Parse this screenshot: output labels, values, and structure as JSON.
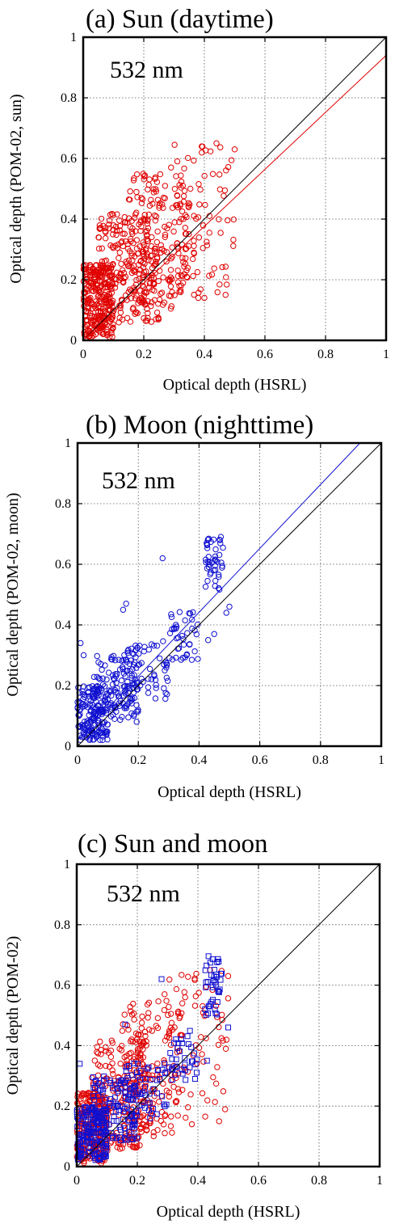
{
  "chart_data": [
    {
      "type": "scatter",
      "panel_title": "(a) Sun (daytime)",
      "annotation": "532 nm",
      "xlabel": "Optical depth (HSRL)",
      "ylabel": "Optical depth (POM-02, sun)",
      "xlim": [
        0,
        1
      ],
      "ylim": [
        0,
        1
      ],
      "xticks": [
        "0",
        "0.2",
        "0.4",
        "0.6",
        "0.8",
        "1"
      ],
      "yticks": [
        "0",
        "0.2",
        "0.4",
        "0.6",
        "0.8",
        "1"
      ],
      "grid": true,
      "series": [
        {
          "marker": "circle",
          "color": "#e00000",
          "clusters": [
            {
              "x_range": [
                0.0,
                0.1
              ],
              "y_range": [
                0.01,
                0.25
              ],
              "count": 260
            },
            {
              "x_range": [
                0.05,
                0.25
              ],
              "y_range": [
                0.05,
                0.42
              ],
              "count": 240
            },
            {
              "x_range": [
                0.15,
                0.35
              ],
              "y_range": [
                0.1,
                0.55
              ],
              "count": 170
            },
            {
              "x_range": [
                0.3,
                0.5
              ],
              "y_range": [
                0.15,
                0.65
              ],
              "count": 80
            }
          ],
          "points": [
            [
              0.44,
              0.65
            ],
            [
              0.5,
              0.63
            ],
            [
              0.47,
              0.15
            ],
            [
              0.38,
              0.14
            ],
            [
              0.4,
              0.14
            ],
            [
              0.29,
              0.57
            ]
          ]
        }
      ],
      "lines": [
        {
          "name": "1:1",
          "color": "#000000",
          "x": [
            0,
            1
          ],
          "y": [
            0,
            1
          ]
        },
        {
          "name": "fit",
          "color": "#e00000",
          "x": [
            0,
            1
          ],
          "y": [
            0.0,
            0.94
          ]
        }
      ]
    },
    {
      "type": "scatter",
      "panel_title": "(b) Moon (nighttime)",
      "annotation": "532 nm",
      "xlabel": "Optical depth (HSRL)",
      "ylabel": "Optical depth (POM-02, moon)",
      "xlim": [
        0,
        1
      ],
      "ylim": [
        0,
        1
      ],
      "xticks": [
        "0",
        "0.2",
        "0.4",
        "0.6",
        "0.8",
        "1"
      ],
      "yticks": [
        "0",
        "0.2",
        "0.4",
        "0.6",
        "0.8",
        "1"
      ],
      "grid": true,
      "series": [
        {
          "marker": "circle",
          "color": "#1010d0",
          "clusters": [
            {
              "x_range": [
                0.0,
                0.1
              ],
              "y_range": [
                0.02,
                0.2
              ],
              "count": 160
            },
            {
              "x_range": [
                0.05,
                0.2
              ],
              "y_range": [
                0.08,
                0.3
              ],
              "count": 120
            },
            {
              "x_range": [
                0.15,
                0.3
              ],
              "y_range": [
                0.15,
                0.35
              ],
              "count": 70
            },
            {
              "x_range": [
                0.3,
                0.4
              ],
              "y_range": [
                0.28,
                0.45
              ],
              "count": 40
            },
            {
              "x_range": [
                0.42,
                0.48
              ],
              "y_range": [
                0.5,
                0.7
              ],
              "count": 45
            }
          ],
          "points": [
            [
              0.28,
              0.62
            ],
            [
              0.16,
              0.47
            ],
            [
              0.15,
              0.45
            ],
            [
              0.01,
              0.34
            ],
            [
              0.02,
              0.3
            ],
            [
              0.5,
              0.46
            ],
            [
              0.49,
              0.44
            ],
            [
              0.43,
              0.35
            ],
            [
              0.45,
              0.37
            ]
          ]
        }
      ],
      "lines": [
        {
          "name": "1:1",
          "color": "#000000",
          "x": [
            0,
            1
          ],
          "y": [
            0,
            1
          ]
        },
        {
          "name": "fit",
          "color": "#1010d0",
          "x": [
            0,
            0.93
          ],
          "y": [
            0.02,
            1.0
          ]
        }
      ]
    },
    {
      "type": "scatter",
      "panel_title": "(c) Sun and moon",
      "annotation": "532 nm",
      "xlabel": "Optical depth (HSRL)",
      "ylabel": "Optical depth (POM-02)",
      "xlim": [
        0,
        1
      ],
      "ylim": [
        0,
        1
      ],
      "xticks": [
        "0",
        "0.2",
        "0.4",
        "0.6",
        "0.8",
        "1"
      ],
      "yticks": [
        "0",
        "0.2",
        "0.4",
        "0.6",
        "0.8",
        "1"
      ],
      "grid": true,
      "series": [
        {
          "marker": "circle",
          "color": "#e00000",
          "clusters": [
            {
              "x_range": [
                0.0,
                0.1
              ],
              "y_range": [
                0.01,
                0.25
              ],
              "count": 230
            },
            {
              "x_range": [
                0.05,
                0.25
              ],
              "y_range": [
                0.05,
                0.42
              ],
              "count": 210
            },
            {
              "x_range": [
                0.15,
                0.35
              ],
              "y_range": [
                0.1,
                0.55
              ],
              "count": 150
            },
            {
              "x_range": [
                0.3,
                0.5
              ],
              "y_range": [
                0.15,
                0.65
              ],
              "count": 70
            }
          ],
          "points": [
            [
              0.44,
              0.65
            ],
            [
              0.5,
              0.63
            ],
            [
              0.47,
              0.15
            ],
            [
              0.38,
              0.14
            ],
            [
              0.29,
              0.57
            ]
          ]
        },
        {
          "marker": "square",
          "color": "#1010d0",
          "clusters": [
            {
              "x_range": [
                0.0,
                0.1
              ],
              "y_range": [
                0.02,
                0.2
              ],
              "count": 150
            },
            {
              "x_range": [
                0.05,
                0.2
              ],
              "y_range": [
                0.08,
                0.3
              ],
              "count": 110
            },
            {
              "x_range": [
                0.15,
                0.3
              ],
              "y_range": [
                0.15,
                0.35
              ],
              "count": 65
            },
            {
              "x_range": [
                0.3,
                0.4
              ],
              "y_range": [
                0.28,
                0.45
              ],
              "count": 35
            },
            {
              "x_range": [
                0.42,
                0.48
              ],
              "y_range": [
                0.5,
                0.7
              ],
              "count": 40
            }
          ],
          "points": [
            [
              0.28,
              0.62
            ],
            [
              0.16,
              0.47
            ],
            [
              0.01,
              0.34
            ],
            [
              0.5,
              0.46
            ],
            [
              0.43,
              0.35
            ]
          ]
        }
      ],
      "lines": [
        {
          "name": "1:1",
          "color": "#000000",
          "x": [
            0,
            1
          ],
          "y": [
            0,
            1
          ]
        }
      ]
    }
  ]
}
